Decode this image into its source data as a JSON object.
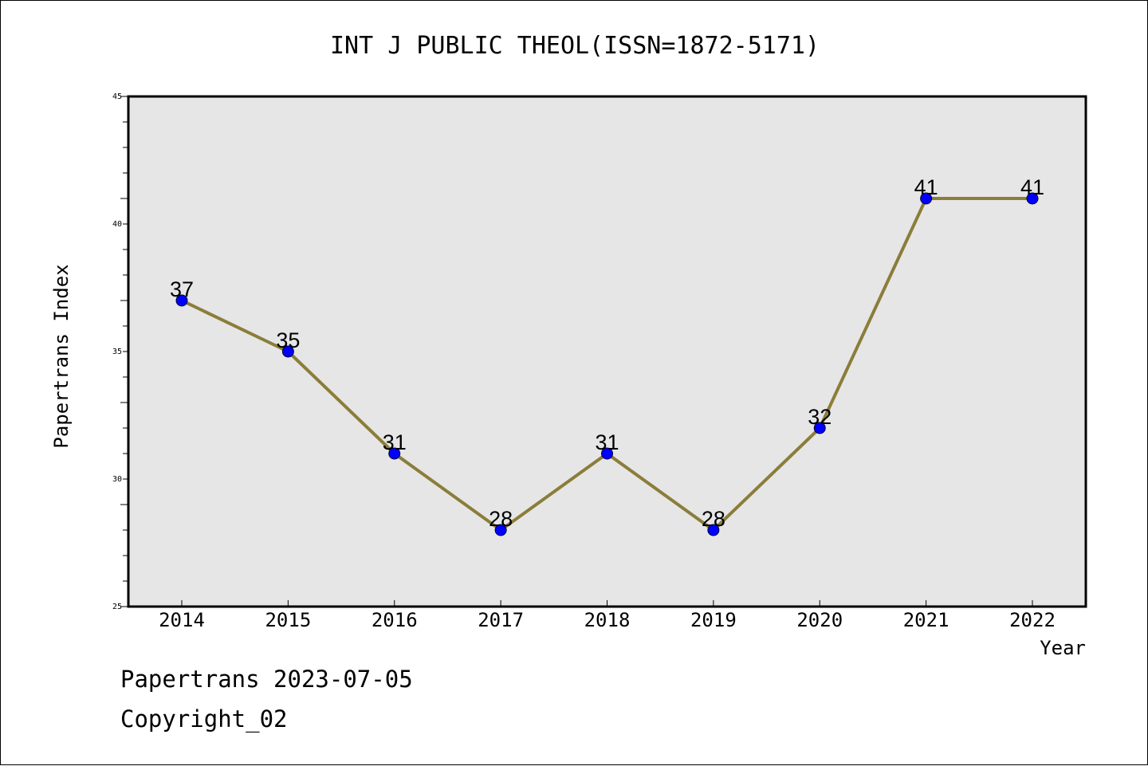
{
  "chart_data": {
    "type": "line",
    "title": "INT J PUBLIC THEOL(ISSN=1872-5171)",
    "xlabel": "Year",
    "ylabel": "Papertrans Index",
    "categories": [
      "2014",
      "2015",
      "2016",
      "2017",
      "2018",
      "2019",
      "2020",
      "2021",
      "2022"
    ],
    "series": [
      {
        "values": [
          37,
          35,
          31,
          28,
          31,
          28,
          32,
          41,
          41
        ]
      }
    ],
    "ylim": [
      25,
      45
    ],
    "y_ticks": [
      "25",
      "30",
      "35",
      "40",
      "45"
    ],
    "grid": false,
    "colors": {
      "line": "#8B7D3A",
      "marker": "#0000FF",
      "plot_background": "#E6E6E6"
    }
  },
  "footer": {
    "line1": "Papertrans 2023-07-05",
    "line2": "Copyright_02"
  }
}
